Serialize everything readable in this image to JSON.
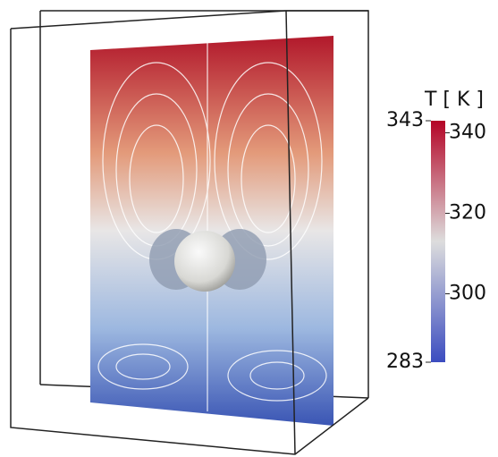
{
  "colorbar": {
    "title": "T [ K ]",
    "range": [
      283,
      343
    ],
    "ticks": [
      300,
      320,
      340
    ]
  }
}
